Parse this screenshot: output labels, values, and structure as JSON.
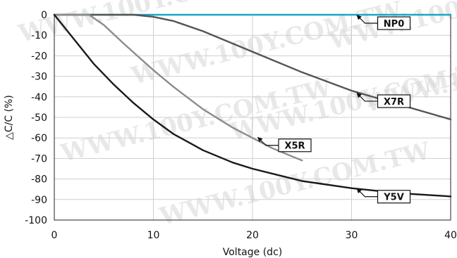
{
  "chart_data": {
    "type": "line",
    "title": "",
    "xlabel": "Voltage (dc)",
    "ylabel": "△C/C (%)",
    "xlim": [
      0,
      40
    ],
    "ylim": [
      -100,
      0
    ],
    "xticks": [
      0,
      10,
      20,
      30,
      40
    ],
    "yticks": [
      0,
      -10,
      -20,
      -30,
      -40,
      -50,
      -60,
      -70,
      -80,
      -90,
      -100
    ],
    "grid": true,
    "watermark": "WWW.100Y.COM.TW",
    "series": [
      {
        "name": "NP0",
        "color": "#1aa6c8",
        "x": [
          0,
          5,
          10,
          15,
          20,
          25,
          30,
          35,
          40
        ],
        "y": [
          0,
          0,
          0,
          0,
          0,
          0,
          0,
          0,
          0
        ]
      },
      {
        "name": "X7R",
        "color": "#555555",
        "x": [
          0,
          5,
          8,
          10,
          12,
          15,
          20,
          25,
          30,
          35,
          40
        ],
        "y": [
          0,
          0,
          0,
          -1,
          -3,
          -8,
          -18,
          -28,
          -37,
          -44,
          -51
        ]
      },
      {
        "name": "X5R",
        "color": "#8c8c8c",
        "x": [
          0,
          3.5,
          5,
          7,
          10,
          12,
          15,
          18,
          20,
          22,
          25
        ],
        "y": [
          0,
          0,
          -5,
          -14,
          -27,
          -35,
          -46,
          -55,
          -60,
          -65,
          -71
        ]
      },
      {
        "name": "Y5V",
        "color": "#1a1a1a",
        "x": [
          0,
          2,
          4,
          6,
          8,
          10,
          12,
          15,
          18,
          20,
          25,
          30,
          35,
          40
        ],
        "y": [
          0,
          -12,
          -24,
          -34,
          -43,
          -51,
          -58,
          -66,
          -72,
          -75,
          -81,
          -84.5,
          -87,
          -88.5
        ]
      }
    ],
    "annotations": [
      {
        "text": "NP0",
        "series": "NP0",
        "at_x": 30.5,
        "at_y": 0
      },
      {
        "text": "X7R",
        "series": "X7R",
        "at_x": 30.5,
        "at_y": -38
      },
      {
        "text": "X5R",
        "series": "X5R",
        "at_x": 20.5,
        "at_y": -59.5
      },
      {
        "text": "Y5V",
        "series": "Y5V",
        "at_x": 30.5,
        "at_y": -84.5
      }
    ]
  }
}
